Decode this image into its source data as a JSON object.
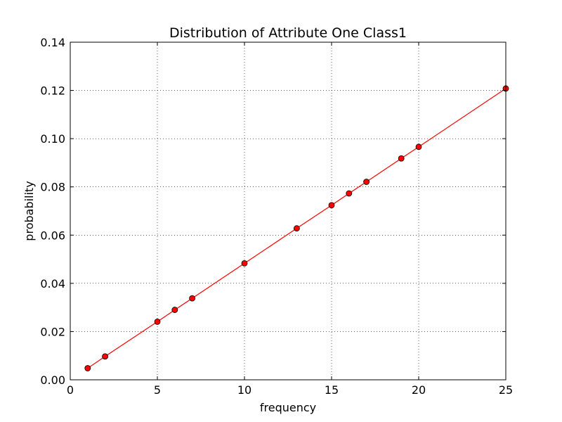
{
  "chart_data": {
    "type": "line",
    "title": "Distribution of Attribute One Class1",
    "xlabel": "frequency",
    "ylabel": "probability",
    "xlim": [
      0,
      25
    ],
    "ylim": [
      0,
      0.14
    ],
    "x_ticks": [
      "0",
      "5",
      "10",
      "15",
      "20",
      "25"
    ],
    "y_ticks": [
      "0.00",
      "0.02",
      "0.04",
      "0.06",
      "0.08",
      "0.10",
      "0.12",
      "0.14"
    ],
    "grid": true,
    "line_color": "#ff0000",
    "marker_color": "#ff0000",
    "series": [
      {
        "x": [
          1,
          2,
          5,
          6,
          7,
          10,
          13,
          15,
          16,
          17,
          19,
          20,
          25
        ],
        "y": [
          0.0048,
          0.0097,
          0.0241,
          0.029,
          0.0338,
          0.0483,
          0.0628,
          0.0724,
          0.0773,
          0.0821,
          0.0918,
          0.0966,
          0.1208
        ]
      }
    ]
  }
}
